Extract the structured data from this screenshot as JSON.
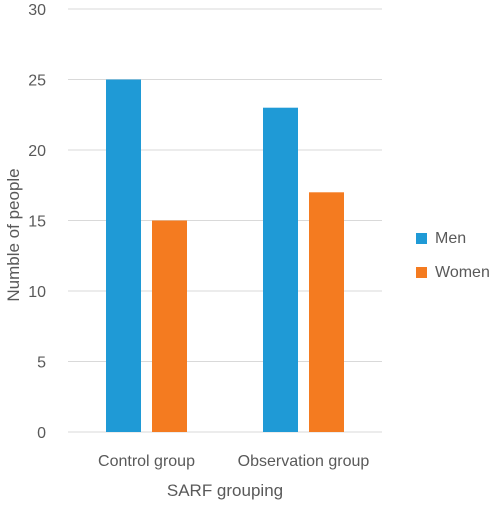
{
  "chart_data": {
    "type": "bar",
    "title": "",
    "xlabel": "SARF grouping",
    "ylabel": "Numble of people",
    "categories": [
      "Control group",
      "Observation group"
    ],
    "series": [
      {
        "name": "Men",
        "values": [
          25,
          23
        ],
        "color": "#1F9AD6"
      },
      {
        "name": "Women",
        "values": [
          15,
          17
        ],
        "color": "#F47B20"
      }
    ],
    "ylim": [
      0,
      30
    ],
    "yticks": [
      0,
      5,
      10,
      15,
      20,
      25,
      30
    ],
    "grid": true,
    "legend_position": "right"
  }
}
